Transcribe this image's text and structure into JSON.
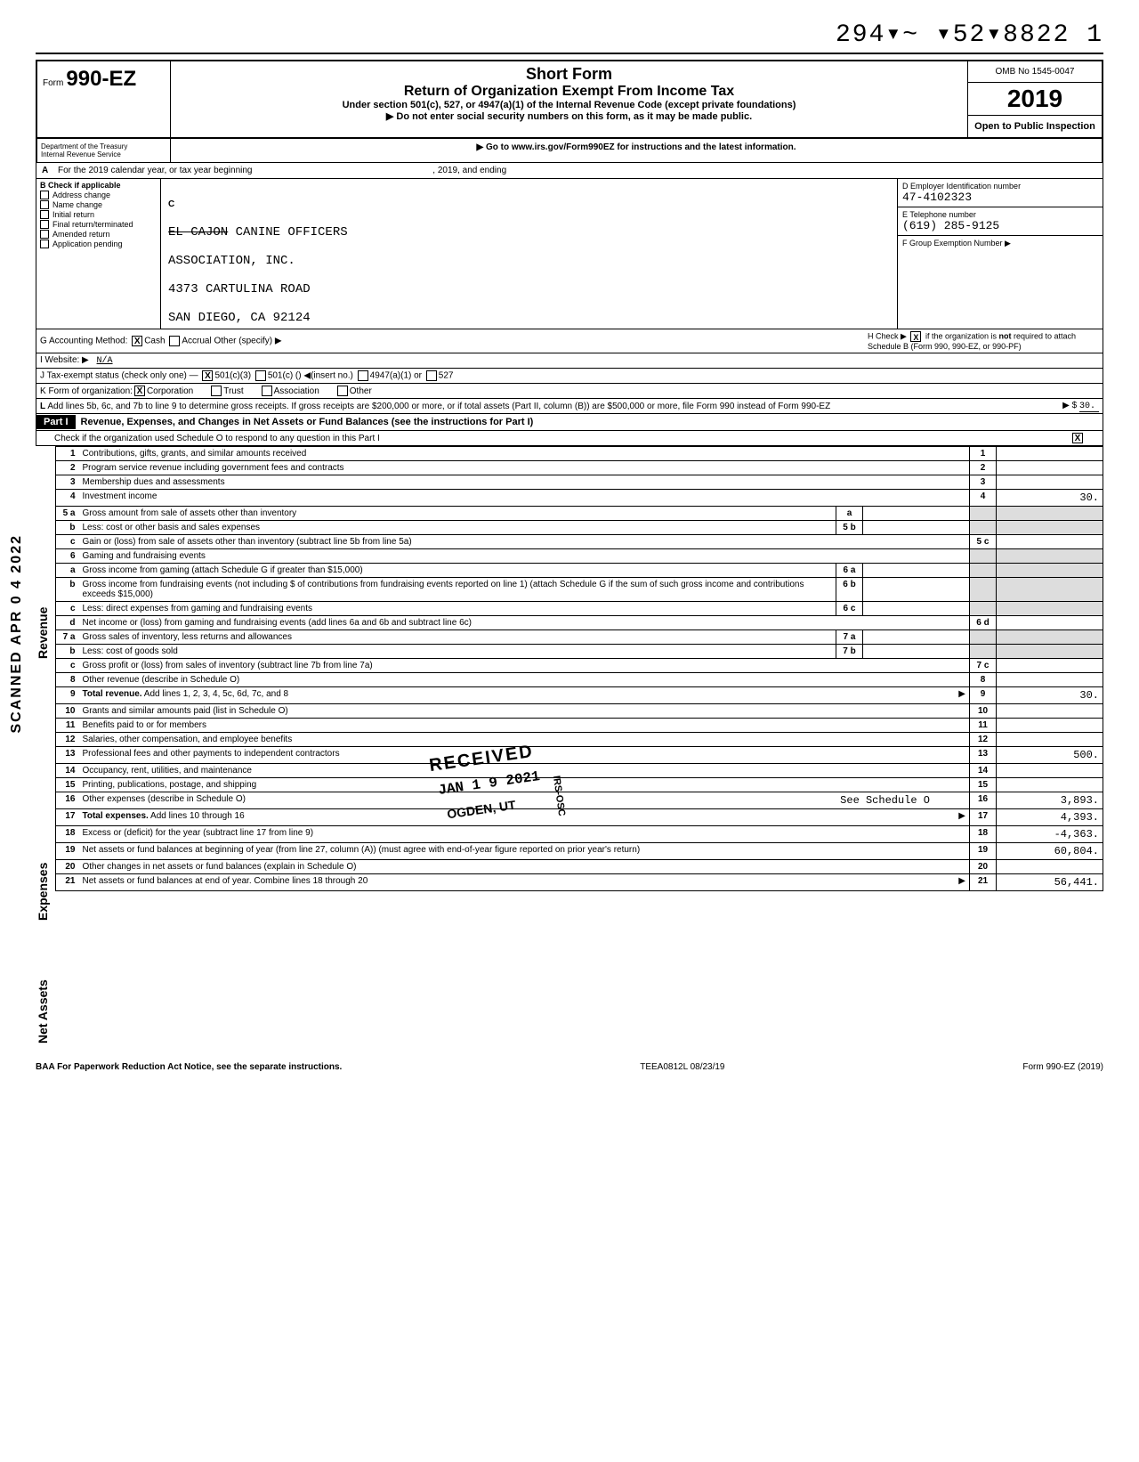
{
  "dln": "294▾~ ▾52▾8822  1",
  "header": {
    "form_prefix": "Form",
    "form_no": "990-EZ",
    "title1": "Short Form",
    "title2": "Return of Organization Exempt From Income Tax",
    "sub1": "Under section 501(c), 527, or 4947(a)(1) of the Internal Revenue Code (except private foundations)",
    "sub2": "▶ Do not enter social security numbers on this form, as it may be made public.",
    "sub3": "▶ Go to www.irs.gov/Form990EZ for instructions and the latest information.",
    "omb": "OMB No 1545-0047",
    "year": "2019",
    "open": "Open to Public Inspection",
    "dept1": "Department of the Treasury",
    "dept2": "Internal Revenue Service"
  },
  "rowA": {
    "label": "A",
    "text": "For the 2019 calendar year, or tax year beginning",
    "mid": ", 2019, and ending",
    "end": ","
  },
  "colB": {
    "hdr": "B   Check if applicable",
    "items": [
      "Address change",
      "Name change",
      "Initial return",
      "Final return/terminated",
      "Amended return",
      "Application pending"
    ]
  },
  "colC": {
    "label": "C",
    "line1_strike": "EL CAJON",
    "line1_rest": " CANINE OFFICERS",
    "line2": "ASSOCIATION, INC.",
    "line3": "4373 CARTULINA ROAD",
    "line4": "SAN DIEGO, CA 92124"
  },
  "colDE": {
    "d_label": "D   Employer Identification number",
    "d_val": "47-4102323",
    "e_label": "E   Telephone number",
    "e_val": "(619) 285-9125",
    "f_label": "F   Group Exemption Number ▶"
  },
  "rowG": {
    "g": "G   Accounting Method:",
    "cash": "Cash",
    "accrual": "Accrual",
    "other": "Other (specify) ▶",
    "i": "I    Website: ▶",
    "i_val": "N/A",
    "j": "J    Tax-exempt status (check only one) —",
    "j1": "501(c)(3)",
    "j2": "501(c) (",
    "j2b": ")  ◀(insert no.)",
    "j3": "4947(a)(1) or",
    "j4": "527",
    "h": "H  Check ▶        if the organization is not required to attach Schedule B (Form 990, 990-EZ, or 990-PF)"
  },
  "rowK": {
    "k": "K   Form of organization:",
    "opts": [
      "Corporation",
      "Trust",
      "Association",
      "Other"
    ]
  },
  "rowL": {
    "l": "L",
    "text": "Add lines 5b, 6c, and 7b to line 9 to determine gross receipts. If gross receipts are $200,000 or more, or if total assets (Part II, column (B)) are $500,000 or more, file Form 990 instead of Form 990-EZ",
    "arrow": "▶ $",
    "amt": "30."
  },
  "part1": {
    "label": "Part I",
    "title": "Revenue, Expenses, and Changes in Net Assets or Fund Balances (see the instructions for Part I)",
    "sub": "Check if the organization used Schedule O to respond to any question in this Part I"
  },
  "sidetabs": {
    "scanned": "SCANNED APR 0 4 2022",
    "revenue": "Revenue",
    "expenses": "Expenses",
    "netassets": "Net Assets"
  },
  "lines": [
    {
      "n": "1",
      "d": "Contributions, gifts, grants, and similar amounts received",
      "r": "1",
      "a": ""
    },
    {
      "n": "2",
      "d": "Program service revenue including government fees and contracts",
      "r": "2",
      "a": ""
    },
    {
      "n": "3",
      "d": "Membership dues and assessments",
      "r": "3",
      "a": ""
    },
    {
      "n": "4",
      "d": "Investment income",
      "r": "4",
      "a": "30."
    },
    {
      "n": "5 a",
      "d": "Gross amount from sale of assets other than inventory",
      "mb": "a",
      "r": "",
      "a": ""
    },
    {
      "n": "b",
      "d": "Less: cost or other basis and sales expenses",
      "mb": "5 b",
      "r": "",
      "a": ""
    },
    {
      "n": "c",
      "d": "Gain or (loss) from sale of assets other than inventory (subtract line 5b from line 5a)",
      "r": "5 c",
      "a": ""
    },
    {
      "n": "6",
      "d": "Gaming and fundraising events",
      "r": "",
      "a": "",
      "shade": true
    },
    {
      "n": "a",
      "d": "Gross income from gaming (attach Schedule G if greater than $15,000)",
      "mb": "6 a",
      "r": "",
      "a": ""
    },
    {
      "n": "b",
      "d": "Gross income from fundraising events (not including $                             of contributions from fundraising events reported on line 1) (attach Schedule G if the sum of such gross income and contributions exceeds $15,000)",
      "mb": "6 b",
      "r": "",
      "a": ""
    },
    {
      "n": "c",
      "d": "Less: direct expenses from gaming and fundraising events",
      "mb": "6 c",
      "r": "",
      "a": ""
    },
    {
      "n": "d",
      "d": "Net income or (loss) from gaming and fundraising events (add lines 6a and 6b and subtract line 6c)",
      "r": "6 d",
      "a": ""
    },
    {
      "n": "7 a",
      "d": "Gross sales of inventory, less returns and allowances",
      "mb": "7 a",
      "r": "",
      "a": ""
    },
    {
      "n": "b",
      "d": "Less: cost of goods sold",
      "mb": "7 b",
      "r": "",
      "a": ""
    },
    {
      "n": "c",
      "d": "Gross profit or (loss) from sales of inventory (subtract line 7b from line 7a)",
      "r": "7 c",
      "a": ""
    },
    {
      "n": "8",
      "d": "Other revenue (describe in Schedule O)",
      "r": "8",
      "a": ""
    },
    {
      "n": "9",
      "d": "Total revenue. Add lines 1, 2, 3, 4, 5c, 6d, 7c, and 8",
      "r": "9",
      "a": "30.",
      "bold": true,
      "arrow": true
    },
    {
      "n": "10",
      "d": "Grants and similar amounts paid (list in Schedule O)",
      "r": "10",
      "a": ""
    },
    {
      "n": "11",
      "d": "Benefits paid to or for members",
      "r": "11",
      "a": ""
    },
    {
      "n": "12",
      "d": "Salaries, other compensation, and employee benefits",
      "r": "12",
      "a": ""
    },
    {
      "n": "13",
      "d": "Professional fees and other payments to independent contractors",
      "r": "13",
      "a": "500."
    },
    {
      "n": "14",
      "d": "Occupancy, rent, utilities, and maintenance",
      "r": "14",
      "a": ""
    },
    {
      "n": "15",
      "d": "Printing, publications, postage, and shipping",
      "r": "15",
      "a": ""
    },
    {
      "n": "16",
      "d": "Other expenses (describe in Schedule O)",
      "extra": "See Schedule O",
      "r": "16",
      "a": "3,893."
    },
    {
      "n": "17",
      "d": "Total expenses. Add lines 10 through 16",
      "r": "17",
      "a": "4,393.",
      "bold": true,
      "arrow": true
    },
    {
      "n": "18",
      "d": "Excess or (deficit) for the year (subtract line 17 from line 9)",
      "r": "18",
      "a": "-4,363."
    },
    {
      "n": "19",
      "d": "Net assets or fund balances at beginning of year (from line 27, column (A)) (must agree with end-of-year figure reported on prior year's return)",
      "r": "19",
      "a": "60,804."
    },
    {
      "n": "20",
      "d": "Other changes in net assets or fund balances (explain in Schedule O)",
      "r": "20",
      "a": ""
    },
    {
      "n": "21",
      "d": "Net assets or fund balances at end of year. Combine lines 18 through 20",
      "r": "21",
      "a": "56,441.",
      "arrow": true
    }
  ],
  "stamp": {
    "received": "RECEIVED",
    "date": "JAN 1 9 2021",
    "ogden": "OGDEN, UT",
    "irs": "IRS-OSC"
  },
  "footer": {
    "baa": "BAA  For Paperwork Reduction Act Notice, see the separate instructions.",
    "mid": "TEEA0812L   08/23/19",
    "right": "Form 990-EZ (2019)"
  },
  "colors": {
    "shade": "#dddddd"
  }
}
